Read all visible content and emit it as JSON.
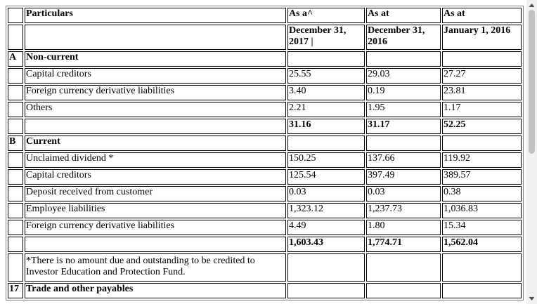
{
  "table": {
    "header": {
      "particulars": "Particulars",
      "columns": [
        {
          "top": "As a^",
          "date": "December 31, 2017 |"
        },
        {
          "top": "As at",
          "date": "December 31, 2016"
        },
        {
          "top": "As at",
          "date": "January 1, 2016"
        }
      ]
    },
    "rows": [
      {
        "section": "A",
        "label": "Non-current"
      },
      {
        "label": "Capital creditors",
        "values": [
          "25.55",
          "29.03",
          "27.27"
        ]
      },
      {
        "label": "Foreign currency derivative liabilities",
        "values": [
          "3.40",
          "0.19",
          "23.81"
        ]
      },
      {
        "label": "Others",
        "values": [
          "2.21",
          "1.95",
          "1.17"
        ]
      },
      {
        "total": [
          "31.16",
          "31.17",
          "52.25"
        ]
      },
      {
        "section": "B",
        "label": "Current"
      },
      {
        "label": "Unclaimed dividend *",
        "values": [
          "150.25",
          "137.66",
          "119.92"
        ]
      },
      {
        "label": "Capital creditors",
        "values": [
          "125.54",
          "397.49",
          "389.57"
        ]
      },
      {
        "label": "Deposit received from customer",
        "values": [
          "0.03",
          "0.03",
          "0.38"
        ]
      },
      {
        "label": "Employee liabilities",
        "values": [
          "1,323.12",
          "1,237.73",
          "1,036.83"
        ]
      },
      {
        "label": "Foreign currency derivative liabilities",
        "values": [
          "4.49",
          "1.80",
          "15.34"
        ]
      },
      {
        "total": [
          "1,603.43",
          "1,774.71",
          "1,562.04"
        ]
      },
      {
        "note": "*There is no amount due and outstanding to be credited to Investor Education and Protection Fund."
      },
      {
        "section": "17",
        "label": "Trade and other payables"
      }
    ]
  }
}
